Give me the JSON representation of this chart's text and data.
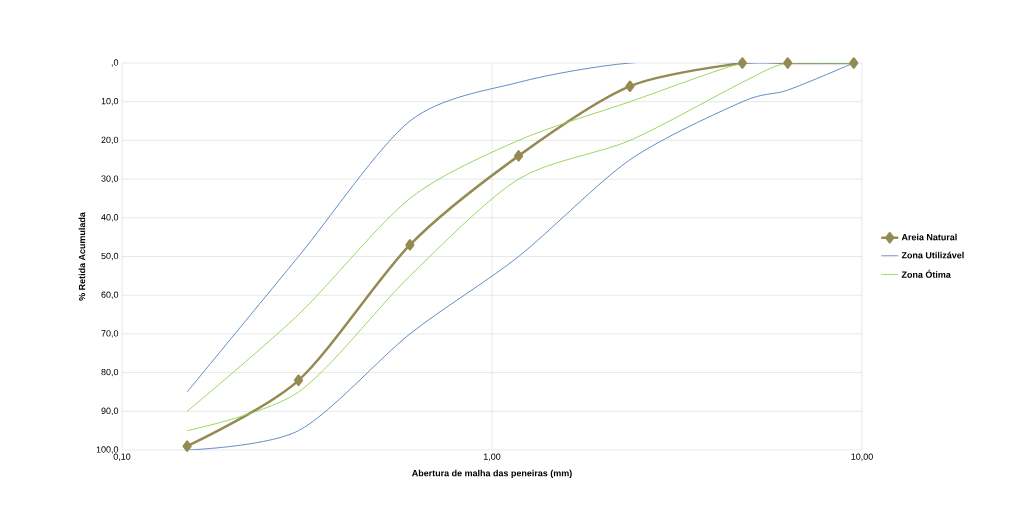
{
  "chart_data": {
    "type": "line",
    "xlabel": "Abertura de malha das peneiras (mm)",
    "ylabel": "% Retida Acumulada",
    "x": [
      0.15,
      0.3,
      0.6,
      1.18,
      2.36,
      4.75,
      6.3,
      9.5
    ],
    "series": [
      {
        "name": "Areia Natural",
        "color": "#948a54",
        "marker": "diamond",
        "values": [
          99,
          82,
          47,
          24,
          6,
          0,
          0,
          0
        ]
      },
      {
        "name": "Zona Utilizável",
        "color": "#4f81bd",
        "marker": "none",
        "values": [
          85,
          50,
          15,
          5,
          0,
          0,
          0,
          0
        ]
      },
      {
        "color": "#4f81bd",
        "marker": "none",
        "values": [
          100,
          95,
          70,
          50,
          25,
          10,
          7,
          0
        ]
      },
      {
        "name": "Zona Ótima",
        "color": "#92d050",
        "marker": "none",
        "values": [
          90,
          65,
          35,
          20,
          10,
          0,
          0,
          0
        ]
      },
      {
        "color": "#92d050",
        "marker": "none",
        "values": [
          95,
          85,
          55,
          30,
          20,
          5,
          0,
          0
        ]
      }
    ],
    "log": "x",
    "xlim": [
      0.1,
      10
    ],
    "xticks": [
      {
        "value": 0.1,
        "label": "0,10"
      },
      {
        "value": 1,
        "label": "1,00"
      },
      {
        "value": 10,
        "label": "10,00"
      }
    ],
    "ylim": [
      100,
      0
    ],
    "yticks": [
      {
        "value": 0,
        "label": ",0"
      },
      {
        "value": 10,
        "label": "10,0"
      },
      {
        "value": 20,
        "label": "20,0"
      },
      {
        "value": 30,
        "label": "30,0"
      },
      {
        "value": 40,
        "label": "40,0"
      },
      {
        "value": 50,
        "label": "50,0"
      },
      {
        "value": 60,
        "label": "60,0"
      },
      {
        "value": 70,
        "label": "70,0"
      },
      {
        "value": 80,
        "label": "80,0"
      },
      {
        "value": 90,
        "label": "90,0"
      },
      {
        "value": 100,
        "label": "100,0"
      }
    ],
    "grid": true,
    "legend": "right"
  }
}
